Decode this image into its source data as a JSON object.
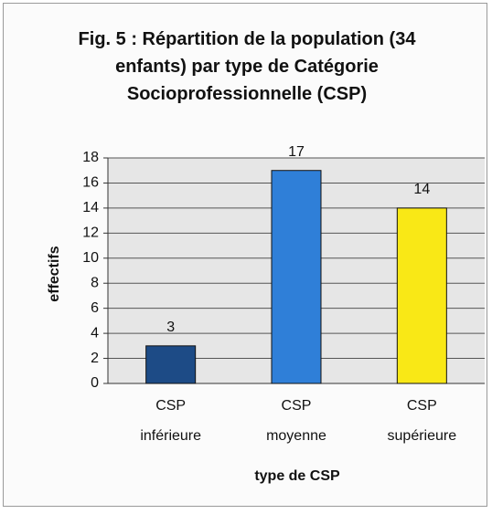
{
  "chart_data": {
    "type": "bar",
    "title": "Fig. 5 : Répartition de la population (34 enfants) par type de Catégorie Socioprofessionnelle (CSP)",
    "categories": [
      "CSP inférieure",
      "CSP moyenne",
      "CSP supérieure"
    ],
    "values": [
      3,
      17,
      14
    ],
    "colors": [
      "#1d4b86",
      "#2f7fd8",
      "#f9e816"
    ],
    "xlabel": "type de CSP",
    "ylabel": "effectifs",
    "ylim": [
      0,
      18
    ],
    "yticks": [
      0,
      2,
      4,
      6,
      8,
      10,
      12,
      14,
      16,
      18
    ],
    "grid": true
  }
}
